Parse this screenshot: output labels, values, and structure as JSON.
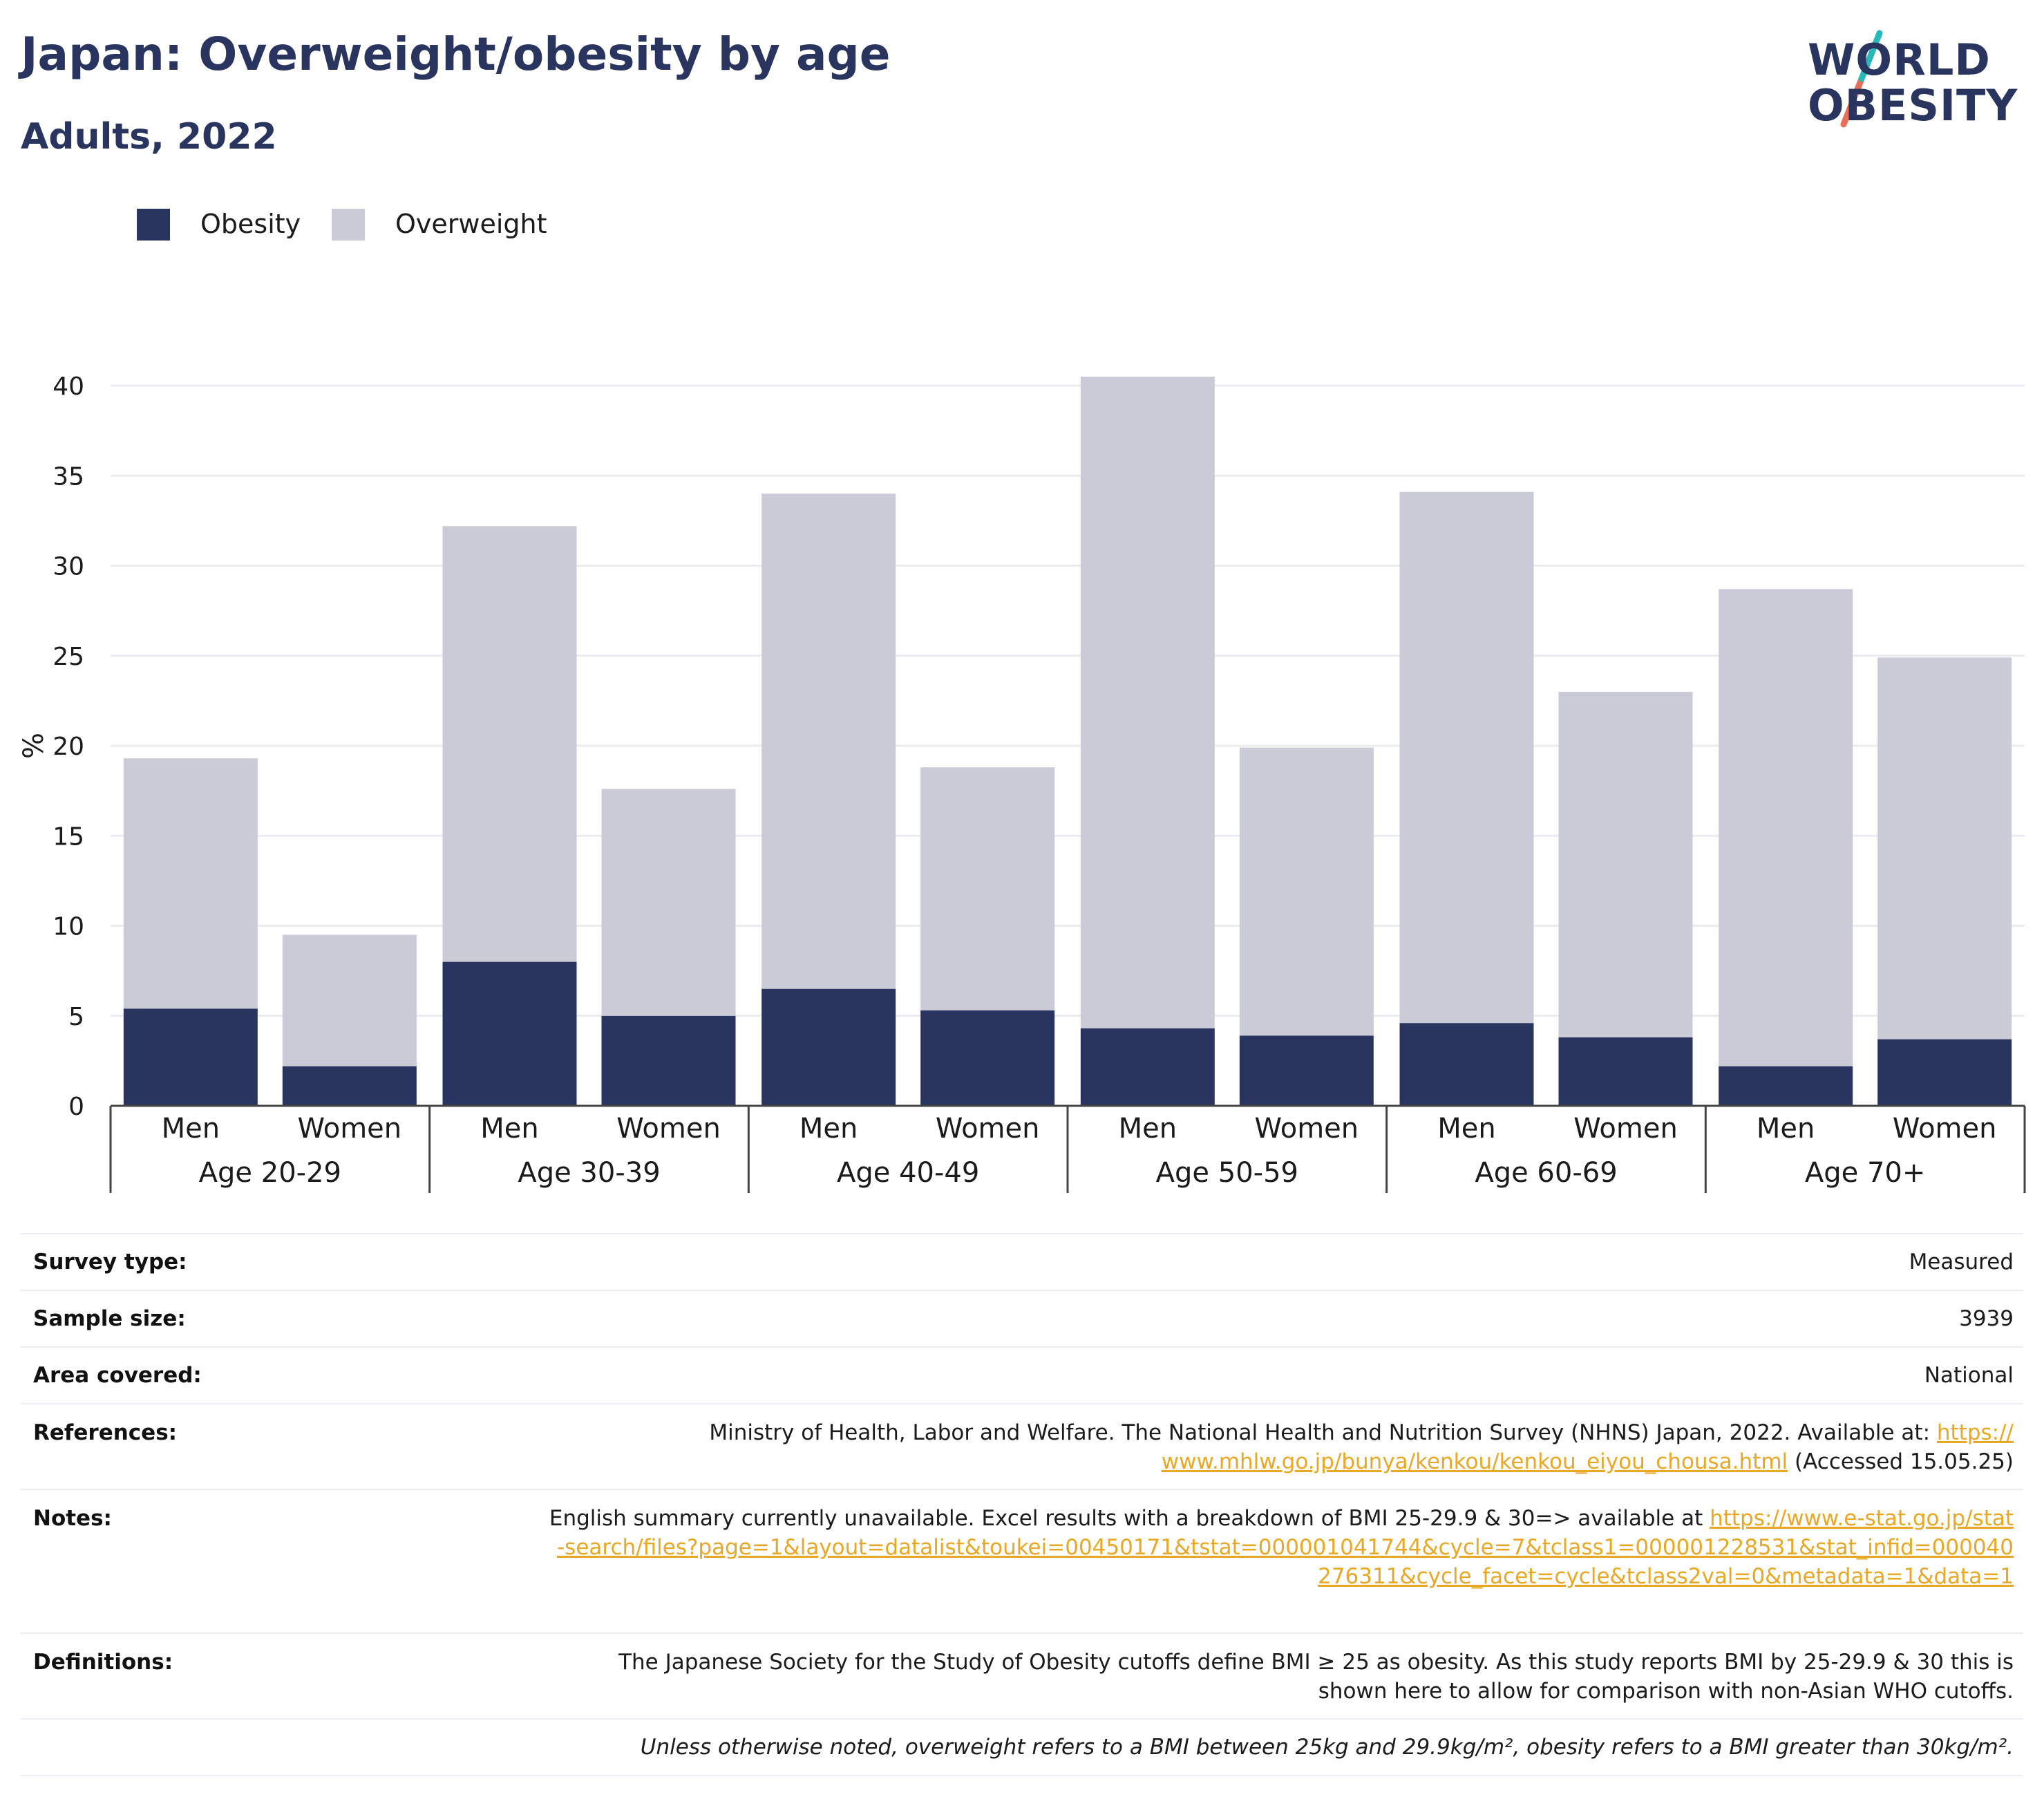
{
  "header": {
    "title": "Japan: Overweight/obesity by age",
    "subtitle": "Adults, 2022"
  },
  "logo": {
    "line1": "WORLD",
    "line2": "OBESITY",
    "icon": "world-obesity-slash-logo",
    "colors": {
      "navy": "#2a355f",
      "teal": "#27b8b8",
      "coral": "#e8705b"
    }
  },
  "legend": {
    "items": [
      {
        "label": "Obesity",
        "color": "#2a355f"
      },
      {
        "label": "Overweight",
        "color": "#cacbd7"
      }
    ]
  },
  "chart_data": {
    "type": "bar",
    "stacked": true,
    "ylabel": "%",
    "ylim": [
      0,
      40
    ],
    "yticks": [
      0,
      5,
      10,
      15,
      20,
      25,
      30,
      35,
      40
    ],
    "grid": true,
    "legend_position": "top-left",
    "groups": [
      {
        "label": "Age 20-29",
        "categories": [
          "Men",
          "Women"
        ]
      },
      {
        "label": "Age 30-39",
        "categories": [
          "Men",
          "Women"
        ]
      },
      {
        "label": "Age 40-49",
        "categories": [
          "Men",
          "Women"
        ]
      },
      {
        "label": "Age 50-59",
        "categories": [
          "Men",
          "Women"
        ]
      },
      {
        "label": "Age 60-69",
        "categories": [
          "Men",
          "Women"
        ]
      },
      {
        "label": "Age 70+",
        "categories": [
          "Men",
          "Women"
        ]
      }
    ],
    "series": [
      {
        "name": "Obesity",
        "color": "#2a355f",
        "values": [
          5.4,
          2.2,
          8.0,
          5.0,
          6.5,
          5.3,
          4.3,
          3.9,
          4.6,
          3.8,
          2.2,
          3.7
        ]
      },
      {
        "name": "Overweight",
        "color": "#cacbd7",
        "values": [
          13.9,
          7.3,
          24.2,
          12.6,
          27.5,
          13.5,
          36.2,
          16.0,
          29.5,
          19.2,
          26.5,
          21.2
        ]
      }
    ]
  },
  "details": {
    "survey_type": {
      "label": "Survey type:",
      "value": "Measured"
    },
    "sample_size": {
      "label": "Sample size:",
      "value": "3939"
    },
    "area_covered": {
      "label": "Area covered:",
      "value": "National"
    },
    "references": {
      "label": "References:",
      "text": "Ministry of Health, Labor and Welfare. The National Health and Nutrition Survey (NHNS) Japan, 2022. Available at:",
      "link": "https://www.mhlw.go.jp/bunya/kenkou/kenkou_eiyou_chousa.html",
      "suffix": " (Accessed 15.05.25)"
    },
    "notes": {
      "label": "Notes:",
      "text": "English summary currently unavailable. Excel results with a breakdown of BMI 25-29.9 & 30=> available at ",
      "link": "https://www.e-stat.go.jp/stat-search/files?page=1&layout=datalist&toukei=00450171&tstat=000001041744&cycle=7&tclass1=000001228531&stat_infid=000040276311&cycle_facet=cycle&tclass2val=0&metadata=1&data=1"
    },
    "definitions": {
      "label": "Definitions:",
      "text": "The Japanese Society for the Study of Obesity cutoffs define BMI ≥ 25 as obesity. As this study reports BMI by 25-29.9 & 30 this is shown here to allow for comparison with non-Asian WHO cutoffs."
    },
    "footnote": "Unless otherwise noted, overweight refers to a BMI between 25kg and 29.9kg/m², obesity refers to a BMI greater than 30kg/m²."
  }
}
